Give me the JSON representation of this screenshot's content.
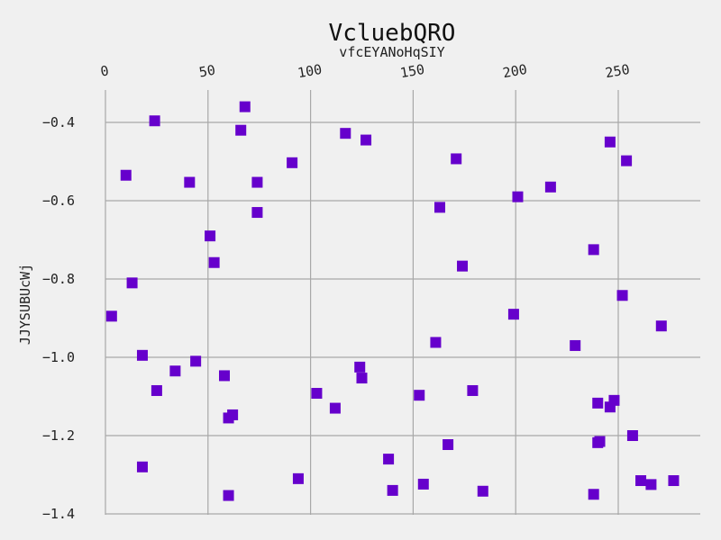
{
  "chart_data": {
    "type": "scatter",
    "title": "VcluebQRO",
    "subtitle": "vfcEYANoHqSIY",
    "xlabel": "",
    "ylabel": "JJYSUBUcWj",
    "xlim": [
      0,
      277
    ],
    "ylim": [
      -1.4,
      -0.32
    ],
    "x_ticks": [
      0,
      50,
      100,
      150,
      200,
      250
    ],
    "x_tick_labels": [
      "0",
      "50",
      "100",
      "150",
      "200",
      "250"
    ],
    "y_ticks": [
      -0.4,
      -0.6,
      -0.8,
      -1.0,
      -1.2,
      -1.4
    ],
    "y_tick_labels": [
      "−0.4",
      "−0.6",
      "−0.8",
      "−1.0",
      "−1.2",
      "−1.4"
    ],
    "x_axis_position": "top",
    "grid": true,
    "marker": "square",
    "marker_color": "#6600cc",
    "background": "#f0f0f0",
    "series": [
      {
        "points": [
          [
            3,
            -0.895
          ],
          [
            10,
            -0.535
          ],
          [
            13,
            -0.81
          ],
          [
            18,
            -0.995
          ],
          [
            18,
            -1.28
          ],
          [
            24,
            -0.396
          ],
          [
            25,
            -1.085
          ],
          [
            34,
            -1.035
          ],
          [
            41,
            -0.553
          ],
          [
            44,
            -1.01
          ],
          [
            51,
            -0.69
          ],
          [
            53,
            -0.758
          ],
          [
            58,
            -1.047
          ],
          [
            60,
            -1.155
          ],
          [
            60,
            -1.353
          ],
          [
            62,
            -1.147
          ],
          [
            66,
            -0.42
          ],
          [
            68,
            -0.36
          ],
          [
            74,
            -0.553
          ],
          [
            74,
            -0.63
          ],
          [
            91,
            -0.503
          ],
          [
            94,
            -1.31
          ],
          [
            103,
            -1.092
          ],
          [
            112,
            -1.13
          ],
          [
            117,
            -0.428
          ],
          [
            124,
            -1.025
          ],
          [
            125,
            -1.053
          ],
          [
            127,
            -0.445
          ],
          [
            138,
            -1.26
          ],
          [
            140,
            -1.34
          ],
          [
            153,
            -1.097
          ],
          [
            155,
            -1.324
          ],
          [
            161,
            -0.962
          ],
          [
            163,
            -0.617
          ],
          [
            167,
            -1.223
          ],
          [
            171,
            -0.493
          ],
          [
            174,
            -0.767
          ],
          [
            179,
            -1.085
          ],
          [
            184,
            -1.342
          ],
          [
            199,
            -0.89
          ],
          [
            201,
            -0.59
          ],
          [
            217,
            -0.565
          ],
          [
            229,
            -0.97
          ],
          [
            238,
            -0.725
          ],
          [
            238,
            -1.35
          ],
          [
            240,
            -1.117
          ],
          [
            240,
            -1.218
          ],
          [
            241,
            -1.215
          ],
          [
            246,
            -0.45
          ],
          [
            246,
            -1.127
          ],
          [
            248,
            -1.11
          ],
          [
            252,
            -0.842
          ],
          [
            254,
            -0.498
          ],
          [
            257,
            -1.2
          ],
          [
            261,
            -1.315
          ],
          [
            266,
            -1.325
          ],
          [
            271,
            -0.92
          ],
          [
            277,
            -1.315
          ]
        ]
      }
    ]
  }
}
